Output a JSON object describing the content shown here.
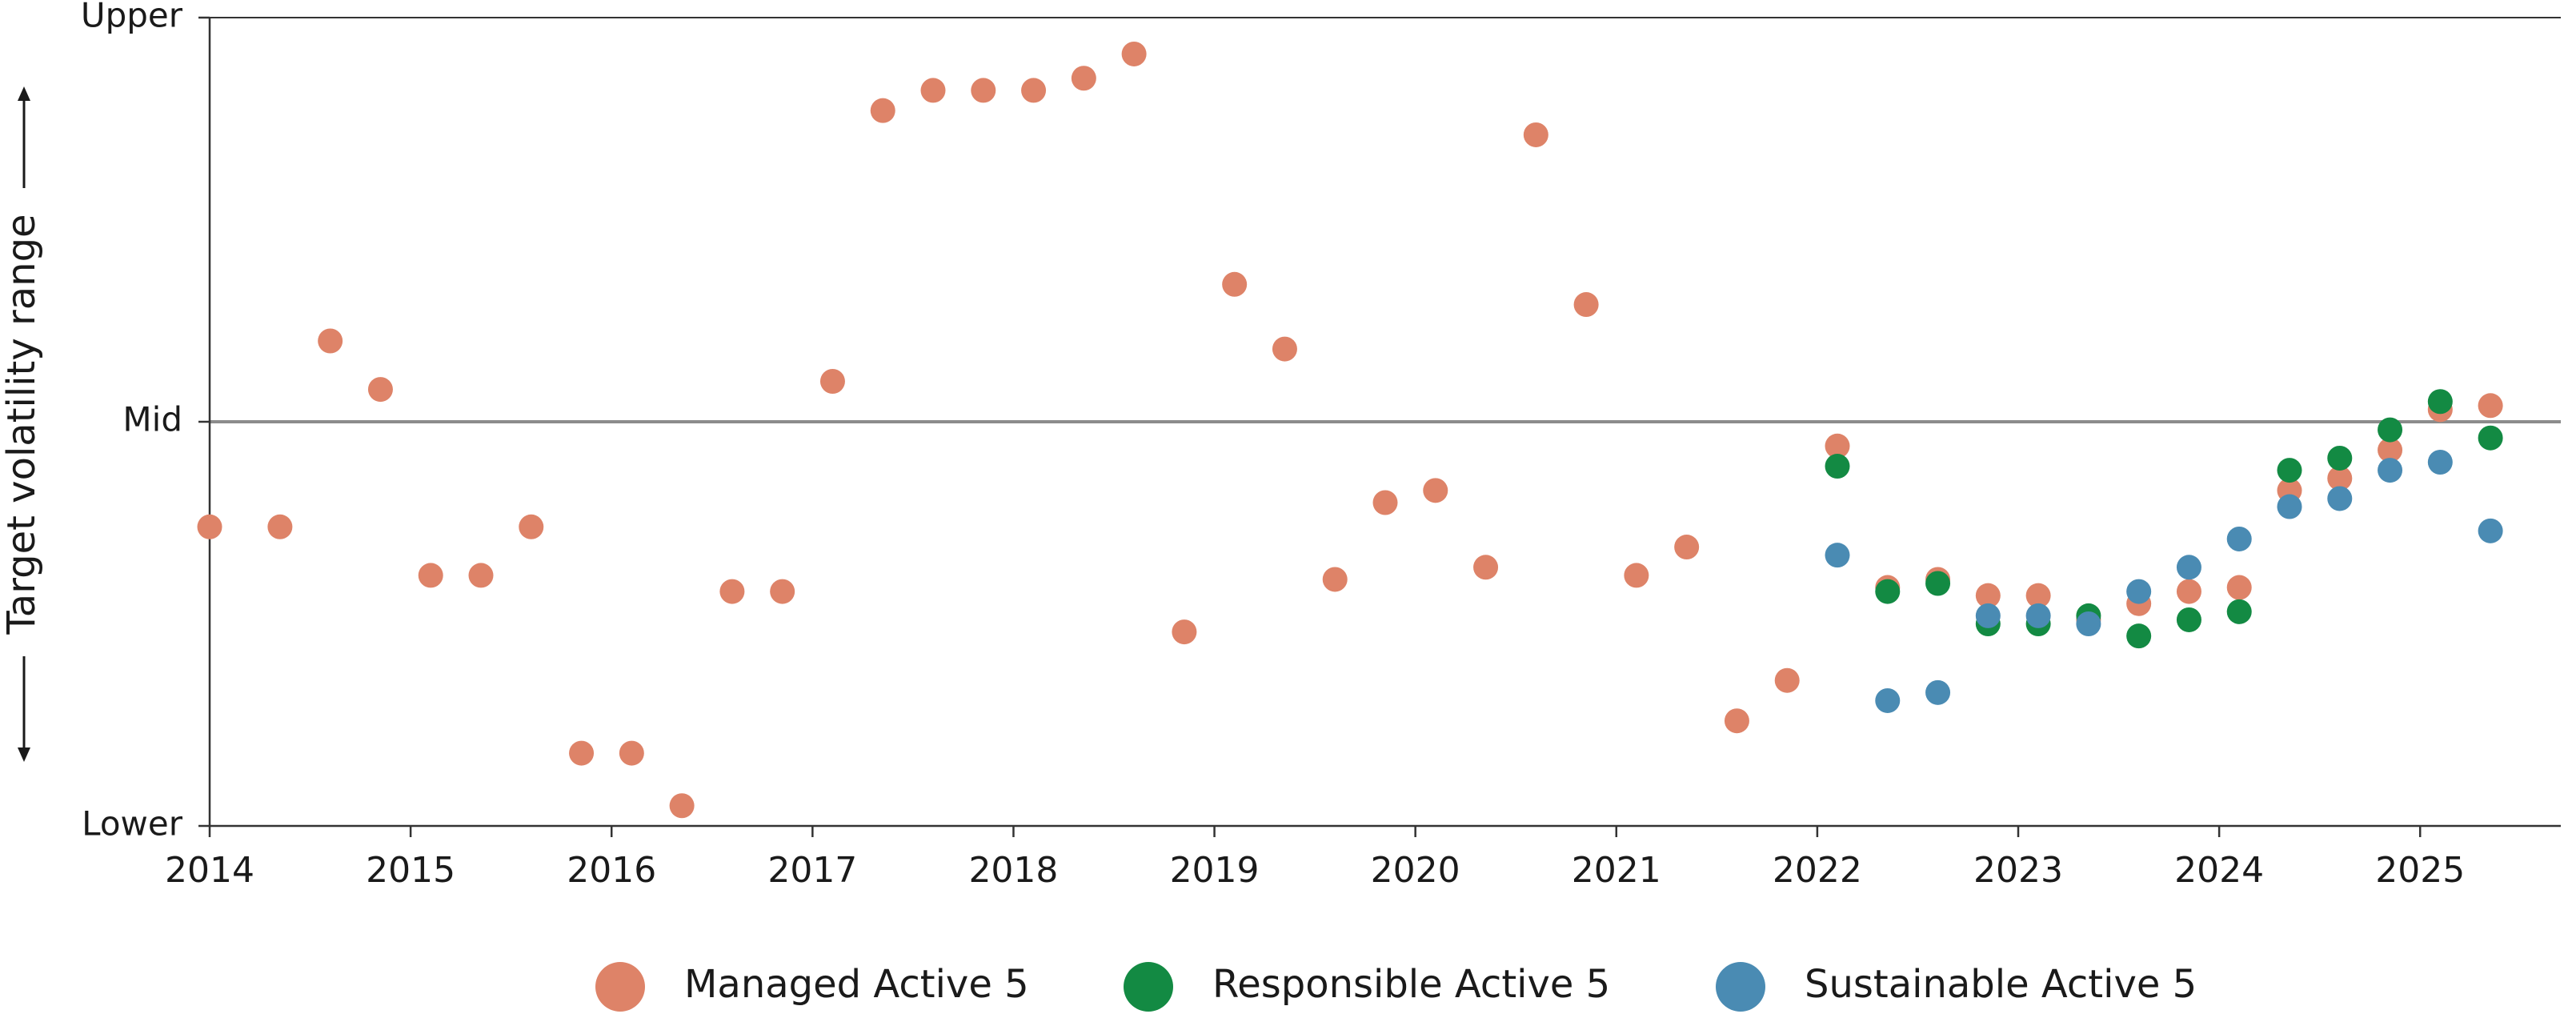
{
  "chart_data": {
    "type": "scatter",
    "xlabel": "",
    "ylabel": "Target volatility range",
    "xlim": [
      2014.0,
      2025.7
    ],
    "ylim": [
      0,
      100
    ],
    "x_ticks": [
      2014,
      2015,
      2016,
      2017,
      2018,
      2019,
      2020,
      2021,
      2022,
      2023,
      2024,
      2025
    ],
    "x_tick_labels": [
      "2014",
      "2015",
      "2016",
      "2017",
      "2018",
      "2019",
      "2020",
      "2021",
      "2022",
      "2023",
      "2024",
      "2025"
    ],
    "y_ticks": [
      0,
      50,
      100
    ],
    "y_tick_labels": [
      "Lower",
      "Mid",
      "Upper"
    ],
    "reference_line": 50,
    "grid": false,
    "legend_position": "bottom",
    "colors": {
      "managed": "#de8368",
      "responsible": "#138a43",
      "sustainable": "#4a8bb3",
      "axis": "#333333",
      "midline": "#8c8c8c"
    },
    "series": [
      {
        "name": "Managed Active 5",
        "color_key": "managed",
        "points": [
          [
            2014.0,
            37
          ],
          [
            2014.35,
            37
          ],
          [
            2014.6,
            60
          ],
          [
            2014.85,
            54
          ],
          [
            2015.1,
            31
          ],
          [
            2015.35,
            31
          ],
          [
            2015.6,
            37
          ],
          [
            2015.85,
            9
          ],
          [
            2016.1,
            9
          ],
          [
            2016.35,
            2.5
          ],
          [
            2016.6,
            29
          ],
          [
            2016.85,
            29
          ],
          [
            2017.1,
            55
          ],
          [
            2017.35,
            88.5
          ],
          [
            2017.6,
            91
          ],
          [
            2017.85,
            91
          ],
          [
            2018.1,
            91
          ],
          [
            2018.35,
            92.5
          ],
          [
            2018.6,
            95.5
          ],
          [
            2018.85,
            24
          ],
          [
            2019.1,
            67
          ],
          [
            2019.35,
            59
          ],
          [
            2019.6,
            30.5
          ],
          [
            2019.85,
            40
          ],
          [
            2020.1,
            41.5
          ],
          [
            2020.35,
            32
          ],
          [
            2020.6,
            85.5
          ],
          [
            2020.85,
            64.5
          ],
          [
            2021.1,
            31
          ],
          [
            2021.35,
            34.5
          ],
          [
            2021.6,
            13
          ],
          [
            2021.85,
            18
          ],
          [
            2022.1,
            47
          ],
          [
            2022.35,
            29.5
          ],
          [
            2022.6,
            30.5
          ],
          [
            2022.85,
            28.5
          ],
          [
            2023.1,
            28.5
          ],
          [
            2023.35,
            25.5
          ],
          [
            2023.6,
            27.5
          ],
          [
            2023.85,
            29
          ],
          [
            2024.1,
            29.5
          ],
          [
            2024.35,
            41.5
          ],
          [
            2024.6,
            43
          ],
          [
            2024.85,
            46.5
          ],
          [
            2025.1,
            51.5
          ],
          [
            2025.35,
            52
          ]
        ]
      },
      {
        "name": "Responsible Active 5",
        "color_key": "responsible",
        "points": [
          [
            2022.1,
            44.5
          ],
          [
            2022.35,
            29
          ],
          [
            2022.6,
            30
          ],
          [
            2022.85,
            25
          ],
          [
            2023.1,
            25
          ],
          [
            2023.35,
            26
          ],
          [
            2023.6,
            23.5
          ],
          [
            2023.85,
            25.5
          ],
          [
            2024.1,
            26.5
          ],
          [
            2024.35,
            44
          ],
          [
            2024.6,
            45.5
          ],
          [
            2024.85,
            49
          ],
          [
            2025.1,
            52.5
          ],
          [
            2025.35,
            48
          ]
        ]
      },
      {
        "name": "Sustainable Active 5",
        "color_key": "sustainable",
        "points": [
          [
            2022.1,
            33.5
          ],
          [
            2022.35,
            15.5
          ],
          [
            2022.6,
            16.5
          ],
          [
            2022.85,
            26
          ],
          [
            2023.1,
            26
          ],
          [
            2023.35,
            25
          ],
          [
            2023.6,
            29
          ],
          [
            2023.85,
            32
          ],
          [
            2024.1,
            35.5
          ],
          [
            2024.35,
            39.5
          ],
          [
            2024.6,
            40.5
          ],
          [
            2024.85,
            44
          ],
          [
            2025.1,
            45
          ],
          [
            2025.35,
            36.5
          ]
        ]
      }
    ]
  }
}
